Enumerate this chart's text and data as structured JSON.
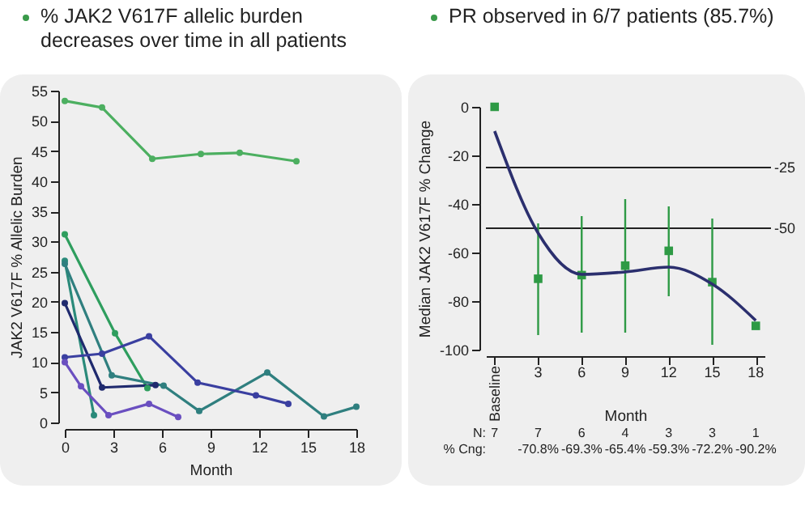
{
  "chart_data": [
    {
      "type": "line",
      "title": "% JAK2 V617F allelic burden decreases over time in all patients",
      "xlabel": "Month",
      "ylabel": "JAK2 V617F % Allelic Burden",
      "xlim": [
        0,
        18
      ],
      "xticks": [
        0,
        3,
        6,
        9,
        12,
        15,
        18
      ],
      "ylim": [
        0,
        55
      ],
      "yticks": [
        0,
        5,
        10,
        15,
        20,
        25,
        30,
        35,
        40,
        45,
        50,
        55
      ],
      "grid": false,
      "legend": false,
      "marker": "circle",
      "line_style": "solid",
      "series": [
        {
          "color": "#4caf60",
          "x": [
            0,
            2.3,
            5.4,
            8.4,
            10.8,
            14.3
          ],
          "values": [
            53.3,
            52.2,
            43.7,
            44.5,
            44.7,
            43.3
          ]
        },
        {
          "color": "#2e9e5e",
          "x": [
            0,
            3.1,
            5.1
          ],
          "values": [
            31.2,
            14.8,
            5.7
          ]
        },
        {
          "color": "#2a8a7a",
          "x": [
            0,
            1.8
          ],
          "values": [
            26.8,
            1.2
          ]
        },
        {
          "color": "#2f7f7f",
          "x": [
            0,
            2.9,
            6.1,
            8.3,
            12.5,
            16,
            18
          ],
          "values": [
            26.3,
            7.8,
            6.1,
            1.9,
            8.3,
            1,
            2.6
          ]
        },
        {
          "color": "#1f2a6e",
          "x": [
            0,
            2.3,
            5.6
          ],
          "values": [
            19.8,
            5.8,
            6.2
          ]
        },
        {
          "color": "#3a3fa0",
          "x": [
            0,
            2.3,
            5.2,
            8.2,
            11.8,
            13.8
          ],
          "values": [
            10.8,
            11.4,
            14.3,
            6.6,
            4.5,
            3.1
          ]
        },
        {
          "color": "#6a4fc0",
          "x": [
            0,
            1,
            2.7,
            5.2,
            7
          ],
          "values": [
            10,
            6,
            1.2,
            3.1,
            0.9
          ]
        }
      ]
    },
    {
      "type": "scatter",
      "title": "PR observed in 6/7 patients (85.7%)",
      "xlabel": "Month",
      "ylabel": "Median JAK2 V617F % Change",
      "categories": [
        "Baseline",
        "3",
        "6",
        "9",
        "12",
        "15",
        "18"
      ],
      "ylim": [
        -100,
        0
      ],
      "yticks": [
        -100,
        -80,
        -60,
        -40,
        -20,
        0
      ],
      "grid": false,
      "series": [
        {
          "type": "scatter",
          "marker": "square",
          "color": "#2e9a45",
          "values": [
            0,
            -70.8,
            -69.3,
            -65.4,
            -59.3,
            -72.2,
            -90.2
          ],
          "errors": [
            null,
            [
              -94,
              -48
            ],
            [
              -93,
              -45
            ],
            [
              -93,
              -38
            ],
            [
              -78,
              -41
            ],
            [
              -98,
              -46
            ],
            null
          ],
          "value_labels": [
            null,
            "-70.8%",
            "-69.3%",
            "-65.4%",
            "-59.3%",
            "-72.2%",
            "-90.2%"
          ]
        },
        {
          "type": "line",
          "marker": "none",
          "color": "#2b2f6e",
          "values": [
            -10,
            -52,
            -69,
            -68,
            -66,
            -73,
            -88
          ]
        }
      ],
      "ref_lines": [
        {
          "axis": "y",
          "value": -25,
          "label": "-25",
          "color": "#222222"
        },
        {
          "axis": "y",
          "value": -50,
          "label": "-50",
          "color": "#222222"
        }
      ],
      "annotations": [
        "N:",
        "7",
        "7",
        "6",
        "4",
        "3",
        "3",
        "1",
        "% Cng:"
      ]
    }
  ]
}
